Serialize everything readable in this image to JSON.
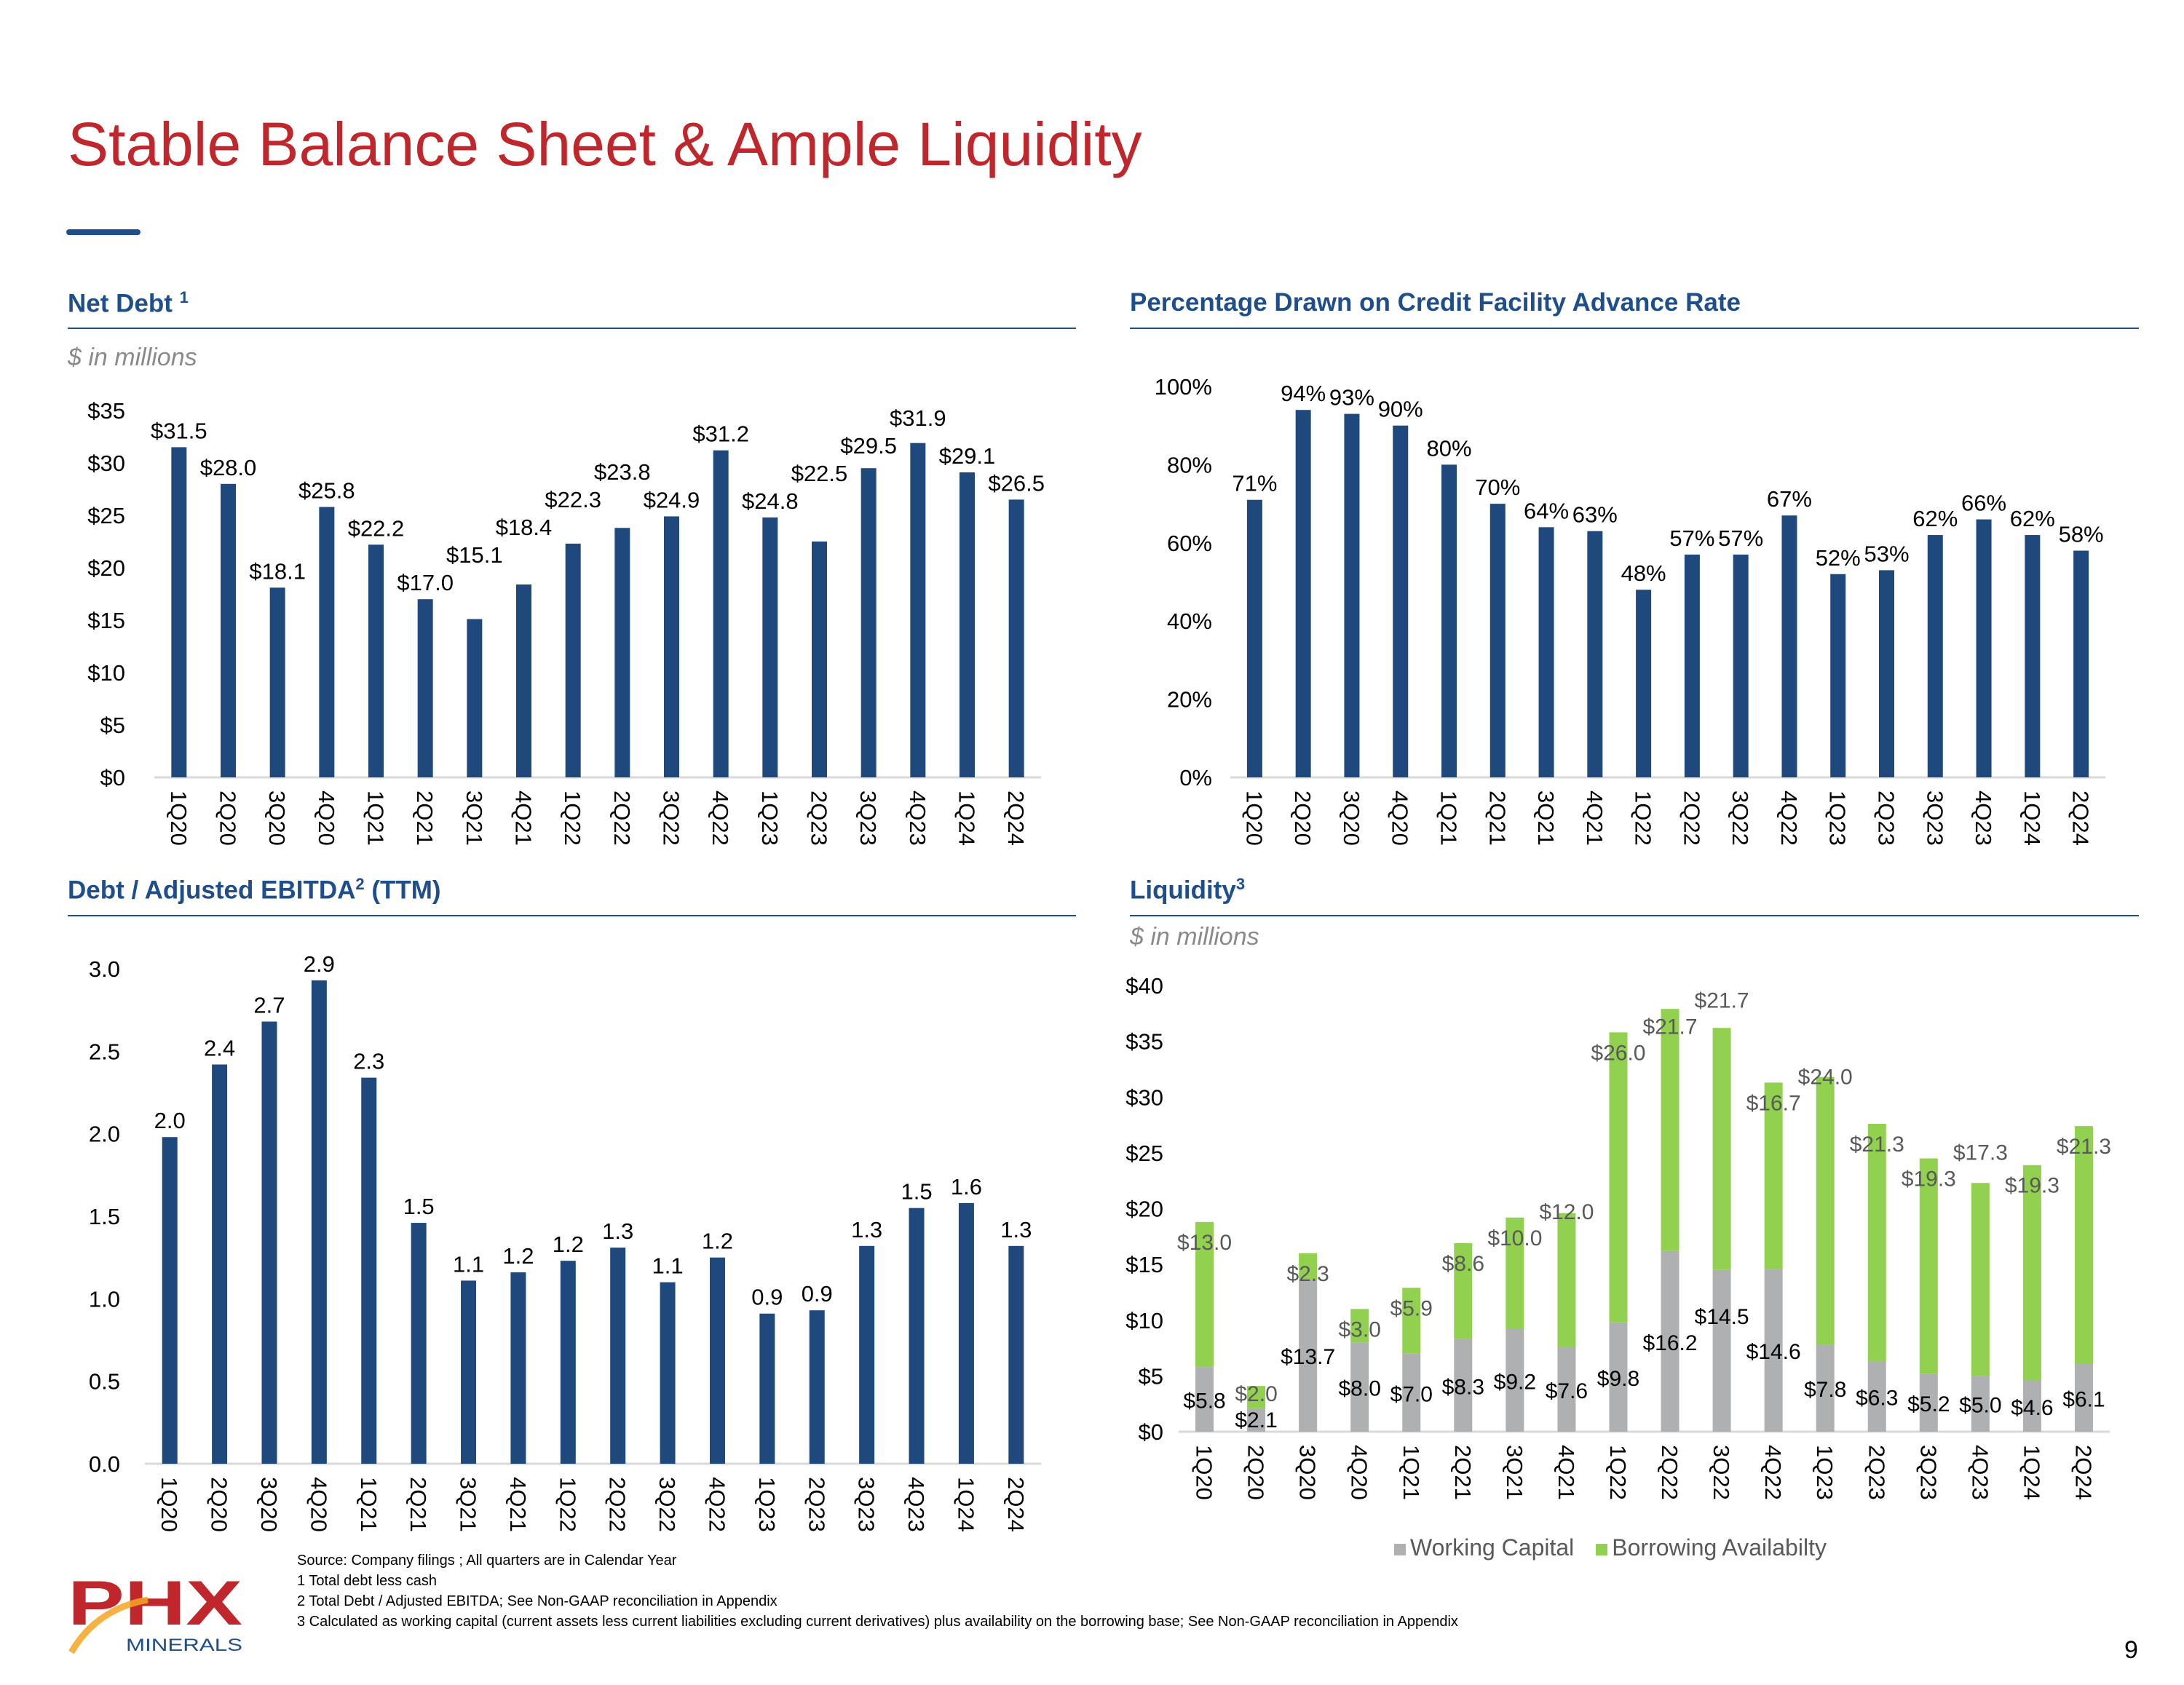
{
  "title": "Stable Balance Sheet & Ample Liquidity",
  "colors": {
    "title": "#c0272d",
    "navy": "#1f4e8c",
    "bar": "#1f497d",
    "green": "#92d050",
    "gray": "#aeb0b1"
  },
  "panels": {
    "net_debt": {
      "header": "Net Debt",
      "sup": "1",
      "subtitle": "$ in millions"
    },
    "pct_drawn": {
      "header": "Percentage Drawn on Credit Facility Advance Rate"
    },
    "ebitda": {
      "header": "Debt / Adjusted EBITDA",
      "sup": "2",
      "header_tail": " (TTM)"
    },
    "liquidity": {
      "header": "Liquidity",
      "sup": "3",
      "subtitle": "$ in millions"
    }
  },
  "chart_data": [
    {
      "id": "net_debt",
      "type": "bar",
      "title": "Net Debt",
      "ylabel": "$ in millions",
      "ylim": [
        0,
        35
      ],
      "yticks": [
        "$0",
        "$5",
        "$10",
        "$15",
        "$20",
        "$25",
        "$30",
        "$35"
      ],
      "categories": [
        "1Q20",
        "2Q20",
        "3Q20",
        "4Q20",
        "1Q21",
        "2Q21",
        "3Q21",
        "4Q21",
        "1Q22",
        "2Q22",
        "3Q22",
        "4Q22",
        "1Q23",
        "2Q23",
        "3Q23",
        "4Q23",
        "1Q24",
        "2Q24"
      ],
      "values": [
        31.5,
        28.0,
        18.1,
        25.8,
        22.2,
        17.0,
        15.1,
        18.4,
        22.3,
        23.8,
        24.9,
        31.2,
        24.8,
        22.5,
        29.5,
        31.9,
        29.1,
        26.5
      ],
      "labels": [
        "$31.5",
        "$28.0",
        "$18.1",
        "$25.8",
        "$22.2",
        "$17.0",
        "$15.1",
        "$18.4",
        "$22.3",
        "$23.8",
        "$24.9",
        "$31.2",
        "$24.8",
        "$22.5",
        "$29.5",
        "$31.9",
        "$29.1",
        "$26.5"
      ]
    },
    {
      "id": "pct_drawn",
      "type": "bar",
      "title": "Percentage Drawn on Credit Facility Advance Rate",
      "ylim": [
        0,
        100
      ],
      "yticks": [
        "0%",
        "20%",
        "40%",
        "60%",
        "80%",
        "100%"
      ],
      "categories": [
        "1Q20",
        "2Q20",
        "3Q20",
        "4Q20",
        "1Q21",
        "2Q21",
        "3Q21",
        "4Q21",
        "1Q22",
        "2Q22",
        "3Q22",
        "4Q22",
        "1Q23",
        "2Q23",
        "3Q23",
        "4Q23",
        "1Q24",
        "2Q24"
      ],
      "values": [
        71,
        94,
        93,
        90,
        80,
        70,
        64,
        63,
        48,
        57,
        57,
        67,
        52,
        53,
        62,
        66,
        62,
        58
      ],
      "labels": [
        "71%",
        "94%",
        "93%",
        "90%",
        "80%",
        "70%",
        "64%",
        "63%",
        "48%",
        "57%",
        "57%",
        "67%",
        "52%",
        "53%",
        "62%",
        "66%",
        "62%",
        "58%"
      ]
    },
    {
      "id": "ebitda",
      "type": "bar",
      "title": "Debt / Adjusted EBITDA (TTM)",
      "ylim": [
        0,
        3.0
      ],
      "yticks": [
        "0.0",
        "0.5",
        "1.0",
        "1.5",
        "2.0",
        "2.5",
        "3.0"
      ],
      "categories": [
        "1Q20",
        "2Q20",
        "3Q20",
        "4Q20",
        "1Q21",
        "2Q21",
        "3Q21",
        "4Q21",
        "1Q22",
        "2Q22",
        "3Q22",
        "4Q22",
        "1Q23",
        "2Q23",
        "3Q23",
        "4Q23",
        "1Q24",
        "2Q24"
      ],
      "values": [
        1.98,
        2.42,
        2.68,
        2.93,
        2.34,
        1.46,
        1.11,
        1.16,
        1.23,
        1.31,
        1.1,
        1.25,
        0.91,
        0.93,
        1.32,
        1.55,
        1.58,
        1.32
      ],
      "labels": [
        "2.0",
        "2.4",
        "2.7",
        "2.9",
        "2.3",
        "1.5",
        "1.1",
        "1.2",
        "1.2",
        "1.3",
        "1.1",
        "1.2",
        "0.9",
        "0.9",
        "1.3",
        "1.5",
        "1.6",
        "1.3"
      ]
    },
    {
      "id": "liquidity",
      "type": "bar",
      "stacked": true,
      "title": "Liquidity",
      "ylabel": "$ in millions",
      "ylim": [
        0,
        40
      ],
      "yticks": [
        "$0",
        "$5",
        "$10",
        "$15",
        "$20",
        "$25",
        "$30",
        "$35",
        "$40"
      ],
      "categories": [
        "1Q20",
        "2Q20",
        "3Q20",
        "4Q20",
        "1Q21",
        "2Q21",
        "3Q21",
        "4Q21",
        "1Q22",
        "2Q22",
        "3Q22",
        "4Q22",
        "1Q23",
        "2Q23",
        "3Q23",
        "4Q23",
        "1Q24",
        "2Q24"
      ],
      "legend": "bottom",
      "series": [
        {
          "name": "Working Capital",
          "color": "#aeb0b1",
          "values": [
            5.8,
            2.1,
            13.7,
            8.0,
            7.0,
            8.3,
            9.2,
            7.6,
            9.8,
            16.2,
            14.5,
            14.6,
            7.8,
            6.3,
            5.2,
            5.0,
            4.6,
            6.1
          ],
          "labels": [
            "$5.8",
            "$2.1",
            "$13.7",
            "$8.0",
            "$7.0",
            "$8.3",
            "$9.2",
            "$7.6",
            "$9.8",
            "$16.2",
            "$14.5",
            "$14.6",
            "$7.8",
            "$6.3",
            "$5.2",
            "$5.0",
            "$4.6",
            "$6.1"
          ]
        },
        {
          "name": "Borrowing Availabilty",
          "color": "#92d050",
          "values": [
            13.0,
            2.0,
            2.3,
            3.0,
            5.9,
            8.6,
            10.0,
            12.0,
            26.0,
            21.7,
            21.7,
            16.7,
            24.0,
            21.3,
            19.3,
            17.3,
            19.3,
            21.3
          ],
          "labels": [
            "$13.0",
            "$2.0",
            "$2.3",
            "$3.0",
            "$5.9",
            "$8.6",
            "$10.0",
            "$12.0",
            "$26.0",
            "$21.7",
            "$21.7",
            "$16.7",
            "$24.0",
            "$21.3",
            "$19.3",
            "$17.3",
            "$19.3",
            "$21.3"
          ]
        }
      ]
    }
  ],
  "footnotes": [
    "Source: Company filings ; All quarters are in Calendar Year",
    "1 Total debt less cash",
    "2 Total Debt / Adjusted EBITDA;  See Non-GAAP reconciliation in Appendix",
    "3 Calculated as working capital (current assets less current liabilities excluding current derivatives) plus availability on the borrowing base; See Non-GAAP reconciliation in Appendix"
  ],
  "logo": {
    "text": "PHX",
    "subtext": "MINERALS"
  },
  "page_number": "9"
}
